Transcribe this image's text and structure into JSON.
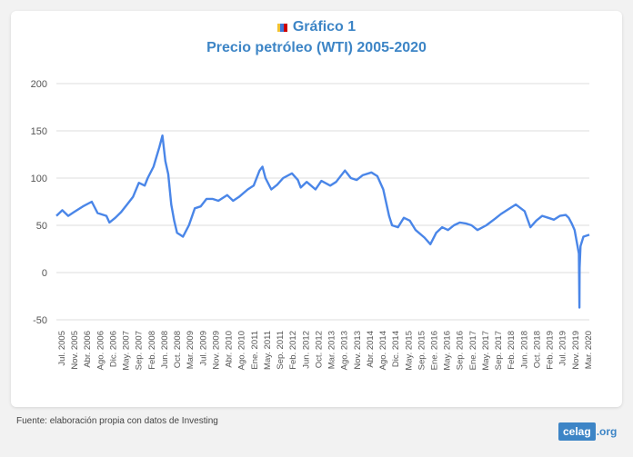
{
  "colors": {
    "line": "#4a86e8",
    "title": "#3d85c6",
    "grid": "#dcdcdc"
  },
  "title_icon": "flag-icon",
  "chart_data": {
    "type": "line",
    "title": "Gráfico 1",
    "subtitle": "Precio petróleo (WTI) 2005-2020",
    "xlabel": "",
    "ylabel": "",
    "ylim": [
      -50,
      200
    ],
    "yticks": [
      "200",
      "150",
      "100",
      "50",
      "0",
      "-50"
    ],
    "grid": true,
    "x_tick_labels": [
      "Jul. 2005",
      "Nov. 2005",
      "Abr. 2006",
      "Ago. 2006",
      "Dic. 2006",
      "May. 2007",
      "Sep. 2007",
      "Feb. 2008",
      "Jun. 2008",
      "Oct. 2008",
      "Mar. 2009",
      "Jul. 2009",
      "Nov. 2009",
      "Abr. 2010",
      "Ago. 2010",
      "Ene. 2011",
      "May. 2011",
      "Sep. 2011",
      "Feb. 2012",
      "Jun. 2012",
      "Oct. 2012",
      "Mar. 2013",
      "Ago. 2013",
      "Nov. 2013",
      "Abr. 2014",
      "Ago. 2014",
      "Dic. 2014",
      "May. 2015",
      "Sep. 2015",
      "Ene. 2016",
      "May. 2016",
      "Sep. 2016",
      "Ene. 2017",
      "May. 2017",
      "Sep. 2017",
      "Feb. 2018",
      "Jun. 2018",
      "Oct. 2018",
      "Feb. 2019",
      "Jul. 2019",
      "Nov. 2019",
      "Mar. 2020"
    ],
    "series": [
      {
        "x": [
          "2005-07",
          "2005-09",
          "2005-11",
          "2006-01",
          "2006-04",
          "2006-07",
          "2006-09",
          "2006-12",
          "2007-01",
          "2007-03",
          "2007-05",
          "2007-07",
          "2007-09",
          "2007-11",
          "2008-01",
          "2008-02",
          "2008-04",
          "2008-06",
          "2008-07",
          "2008-08",
          "2008-09",
          "2008-10",
          "2008-11",
          "2008-12",
          "2009-01",
          "2009-02",
          "2009-04",
          "2009-06",
          "2009-08",
          "2009-10",
          "2009-12",
          "2010-02",
          "2010-05",
          "2010-07",
          "2010-09",
          "2010-12",
          "2011-02",
          "2011-04",
          "2011-05",
          "2011-06",
          "2011-08",
          "2011-10",
          "2011-12",
          "2012-03",
          "2012-05",
          "2012-06",
          "2012-08",
          "2012-11",
          "2013-01",
          "2013-04",
          "2013-06",
          "2013-09",
          "2013-11",
          "2014-01",
          "2014-03",
          "2014-06",
          "2014-08",
          "2014-10",
          "2014-12",
          "2015-01",
          "2015-03",
          "2015-05",
          "2015-07",
          "2015-09",
          "2015-12",
          "2016-02",
          "2016-04",
          "2016-06",
          "2016-08",
          "2016-10",
          "2016-12",
          "2017-02",
          "2017-04",
          "2017-06",
          "2017-09",
          "2017-12",
          "2018-02",
          "2018-05",
          "2018-07",
          "2018-10",
          "2018-12",
          "2019-02",
          "2019-04",
          "2019-06",
          "2019-08",
          "2019-10",
          "2019-12",
          "2020-01",
          "2020-02",
          "2020-03",
          "2020-04-15",
          "2020-04-20",
          "2020-04-22",
          "2020-05",
          "2020-06",
          "2020-08"
        ],
        "values": [
          60,
          66,
          60,
          64,
          70,
          75,
          63,
          60,
          53,
          58,
          64,
          72,
          80,
          95,
          92,
          100,
          112,
          133,
          145,
          118,
          104,
          72,
          55,
          42,
          40,
          38,
          50,
          68,
          70,
          78,
          78,
          76,
          82,
          76,
          80,
          88,
          92,
          108,
          112,
          100,
          88,
          93,
          100,
          105,
          98,
          90,
          96,
          88,
          97,
          92,
          96,
          108,
          100,
          98,
          103,
          106,
          102,
          88,
          60,
          50,
          48,
          58,
          55,
          45,
          37,
          30,
          42,
          48,
          45,
          50,
          53,
          52,
          50,
          45,
          50,
          57,
          62,
          68,
          72,
          65,
          48,
          55,
          60,
          58,
          56,
          60,
          61,
          58,
          52,
          45,
          20,
          -37,
          5,
          28,
          38,
          40
        ]
      }
    ]
  },
  "footer": {
    "source": "Fuente: elaboración propia con datos de Investing",
    "logo_main": "celag",
    "logo_tld": ".org"
  }
}
